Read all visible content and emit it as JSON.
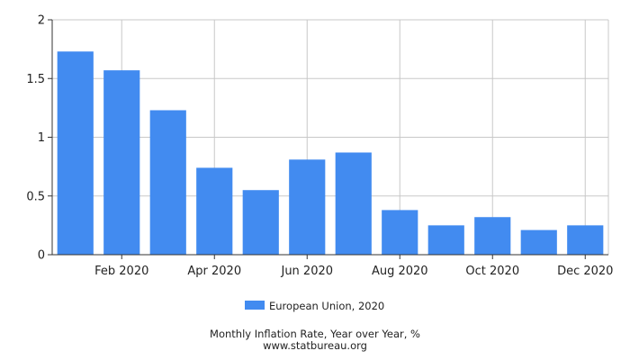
{
  "chart_data": {
    "type": "bar",
    "categories": [
      "Jan 2020",
      "Feb 2020",
      "Mar 2020",
      "Apr 2020",
      "May 2020",
      "Jun 2020",
      "Jul 2020",
      "Aug 2020",
      "Sep 2020",
      "Oct 2020",
      "Nov 2020",
      "Dec 2020"
    ],
    "x_tick_labels": [
      "Feb 2020",
      "Apr 2020",
      "Jun 2020",
      "Aug 2020",
      "Oct 2020",
      "Dec 2020"
    ],
    "series": [
      {
        "name": "European Union, 2020",
        "color": "#428bf0",
        "values": [
          1.73,
          1.57,
          1.23,
          0.74,
          0.55,
          0.81,
          0.87,
          0.38,
          0.25,
          0.32,
          0.21,
          0.25
        ]
      }
    ],
    "y_ticks": [
      "0",
      "0.5",
      "1",
      "1.5",
      "2"
    ],
    "ylim": [
      0,
      2
    ],
    "grid": true,
    "legend_position": "bottom"
  },
  "caption": {
    "title": "Monthly Inflation Rate, Year over Year, %",
    "source": "www.statbureau.org"
  }
}
